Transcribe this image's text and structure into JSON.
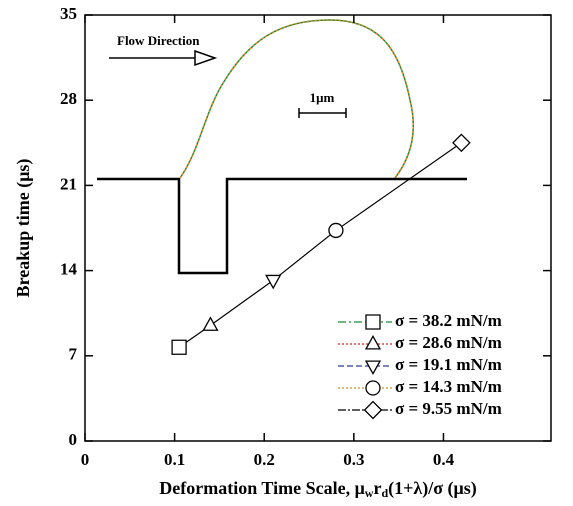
{
  "chart_data": {
    "type": "scatter",
    "x_label": [
      "Deformation Time Scale, μ",
      "w",
      "r",
      "d",
      "(1+λ)/σ (μs)"
    ],
    "y_label": "Breakup time (μs)",
    "annotations": [
      "Flow Direction",
      "1μm"
    ],
    "xlim": [
      0,
      0.52
    ],
    "xticks": [
      0,
      0.1,
      0.2,
      0.3,
      0.4
    ],
    "ylim": [
      0,
      35
    ],
    "yticks": [
      0,
      7,
      14,
      21,
      28,
      35
    ],
    "series": [
      {
        "name": "σ = 38.2 mN/m",
        "color": "#1a8a3a",
        "dash": "8 3 2 3",
        "marker": "square",
        "x": [
          0.105
        ],
        "values": [
          7.7
        ]
      },
      {
        "name": "σ = 28.6 mN/m",
        "color": "#d42020",
        "dash": "2 2",
        "marker": "triangle-up",
        "x": [
          0.14
        ],
        "values": [
          9.5
        ]
      },
      {
        "name": "σ = 19.1 mN/m",
        "color": "#2a3a9a",
        "dash": "6 3",
        "marker": "triangle-down",
        "x": [
          0.21
        ],
        "values": [
          13.2
        ]
      },
      {
        "name": "σ = 14.3 mN/m",
        "color": "#e08a20",
        "dash": "2 2",
        "marker": "circle",
        "x": [
          0.28
        ],
        "values": [
          17.3
        ]
      },
      {
        "name": "σ = 9.55 mN/m",
        "color": "#000000",
        "dash": "8 2 2 2",
        "marker": "diamond",
        "x": [
          0.42
        ],
        "values": [
          24.5
        ]
      }
    ]
  }
}
